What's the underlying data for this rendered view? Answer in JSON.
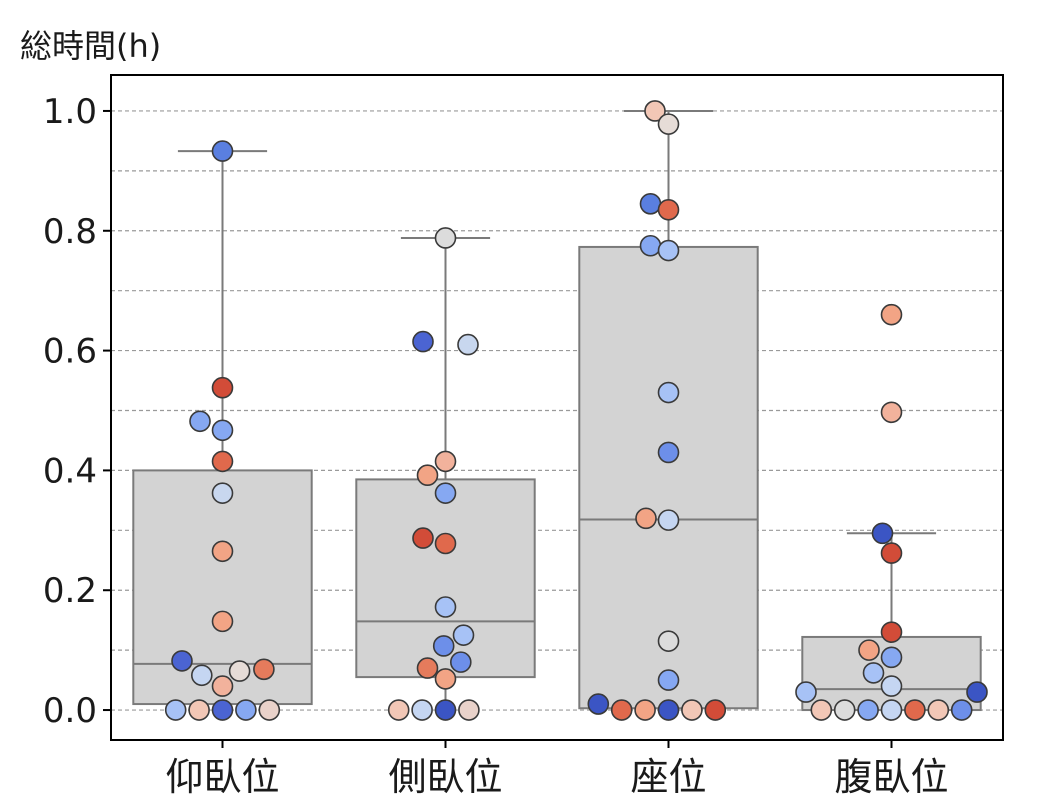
{
  "chart_data": {
    "type": "box-swarm",
    "title": "",
    "ylabel": "総時間(h)",
    "xlabel": "",
    "ylim": [
      -0.05,
      1.06
    ],
    "yticks": [
      "0.0",
      "0.2",
      "0.4",
      "0.6",
      "0.8",
      "1.0"
    ],
    "ytick_values": [
      0.0,
      0.2,
      0.4,
      0.6,
      0.8,
      1.0
    ],
    "grid": "horizontal dashed",
    "box_color": "#d3d3d3",
    "box_edge_color": "#7a7a7a",
    "categories": [
      "仰臥位",
      "側臥位",
      "座位",
      "腹臥位"
    ],
    "boxes": [
      {
        "name": "仰臥位",
        "q1": 0.01,
        "median": 0.077,
        "q3": 0.4,
        "whisker_low": 0.0,
        "whisker_high": 0.933
      },
      {
        "name": "側臥位",
        "q1": 0.055,
        "median": 0.148,
        "q3": 0.385,
        "whisker_low": 0.0,
        "whisker_high": 0.788
      },
      {
        "name": "座位",
        "q1": 0.003,
        "median": 0.318,
        "q3": 0.773,
        "whisker_low": 0.0,
        "whisker_high": 1.0
      },
      {
        "name": "腹臥位",
        "q1": 0.0,
        "median": 0.035,
        "q3": 0.122,
        "whisker_low": 0.0,
        "whisker_high": 0.295
      }
    ],
    "points": [
      [
        {
          "y": 0.933,
          "offset": 0.0,
          "color": "#5a7fe0"
        },
        {
          "y": 0.538,
          "offset": 0.0,
          "color": "#d24c38"
        },
        {
          "y": 0.482,
          "offset": -0.25,
          "color": "#86a8f2"
        },
        {
          "y": 0.467,
          "offset": 0.0,
          "color": "#86a8f2"
        },
        {
          "y": 0.415,
          "offset": 0.0,
          "color": "#e0694c"
        },
        {
          "y": 0.362,
          "offset": 0.0,
          "color": "#c8d7ef"
        },
        {
          "y": 0.265,
          "offset": 0.0,
          "color": "#f2a485"
        },
        {
          "y": 0.148,
          "offset": 0.0,
          "color": "#f2a485"
        },
        {
          "y": 0.082,
          "offset": -0.45,
          "color": "#4b64d2"
        },
        {
          "y": 0.065,
          "offset": 0.19,
          "color": "#e6dcd7"
        },
        {
          "y": 0.068,
          "offset": 0.46,
          "color": "#e57b5c"
        },
        {
          "y": 0.058,
          "offset": -0.23,
          "color": "#c5d6f2"
        },
        {
          "y": 0.04,
          "offset": 0.0,
          "color": "#f2b29c"
        },
        {
          "y": 0.0,
          "offset": -0.52,
          "color": "#a7c2f6"
        },
        {
          "y": 0.0,
          "offset": -0.26,
          "color": "#f2c7b6"
        },
        {
          "y": 0.0,
          "offset": 0.0,
          "color": "#4b64d2"
        },
        {
          "y": 0.0,
          "offset": 0.26,
          "color": "#86a8f2"
        },
        {
          "y": 0.0,
          "offset": 0.52,
          "color": "#e9d2ca"
        }
      ],
      [
        {
          "y": 0.788,
          "offset": 0.0,
          "color": "#dcdcdc"
        },
        {
          "y": 0.615,
          "offset": -0.25,
          "color": "#4b64d2"
        },
        {
          "y": 0.61,
          "offset": 0.25,
          "color": "#c8d7ef"
        },
        {
          "y": 0.415,
          "offset": 0.0,
          "color": "#f2b29c"
        },
        {
          "y": 0.392,
          "offset": -0.2,
          "color": "#f2a485"
        },
        {
          "y": 0.362,
          "offset": 0.0,
          "color": "#86a8f2"
        },
        {
          "y": 0.287,
          "offset": -0.25,
          "color": "#d24c38"
        },
        {
          "y": 0.278,
          "offset": 0.0,
          "color": "#e0694c"
        },
        {
          "y": 0.172,
          "offset": 0.0,
          "color": "#a7c2f6"
        },
        {
          "y": 0.125,
          "offset": 0.2,
          "color": "#a7c2f6"
        },
        {
          "y": 0.107,
          "offset": -0.02,
          "color": "#6d8fe9"
        },
        {
          "y": 0.08,
          "offset": 0.17,
          "color": "#6d8fe9"
        },
        {
          "y": 0.07,
          "offset": -0.2,
          "color": "#e57b5c"
        },
        {
          "y": 0.052,
          "offset": 0.0,
          "color": "#f2a485"
        },
        {
          "y": 0.0,
          "offset": -0.52,
          "color": "#f2c7b6"
        },
        {
          "y": 0.0,
          "offset": -0.26,
          "color": "#c5d6f2"
        },
        {
          "y": 0.0,
          "offset": 0.0,
          "color": "#3b55c4"
        },
        {
          "y": 0.0,
          "offset": 0.26,
          "color": "#e9d2ca"
        }
      ],
      [
        {
          "y": 1.0,
          "offset": -0.15,
          "color": "#f2c7b6"
        },
        {
          "y": 0.978,
          "offset": 0.0,
          "color": "#e6dcd7"
        },
        {
          "y": 0.845,
          "offset": -0.2,
          "color": "#5a7fe0"
        },
        {
          "y": 0.835,
          "offset": 0.0,
          "color": "#e0694c"
        },
        {
          "y": 0.775,
          "offset": -0.2,
          "color": "#86a8f2"
        },
        {
          "y": 0.767,
          "offset": 0.0,
          "color": "#a7c2f6"
        },
        {
          "y": 0.53,
          "offset": 0.0,
          "color": "#a7c2f6"
        },
        {
          "y": 0.43,
          "offset": 0.0,
          "color": "#6d8fe9"
        },
        {
          "y": 0.32,
          "offset": -0.25,
          "color": "#f2a485"
        },
        {
          "y": 0.317,
          "offset": 0.0,
          "color": "#c5d6f2"
        },
        {
          "y": 0.115,
          "offset": 0.0,
          "color": "#dcdcdc"
        },
        {
          "y": 0.05,
          "offset": 0.0,
          "color": "#86a8f2"
        },
        {
          "y": 0.01,
          "offset": -0.78,
          "color": "#3b55c4"
        },
        {
          "y": 0.0,
          "offset": -0.52,
          "color": "#e0694c"
        },
        {
          "y": 0.0,
          "offset": -0.26,
          "color": "#f2a485"
        },
        {
          "y": 0.0,
          "offset": 0.0,
          "color": "#3b55c4"
        },
        {
          "y": 0.0,
          "offset": 0.26,
          "color": "#f2c7b6"
        },
        {
          "y": 0.0,
          "offset": 0.52,
          "color": "#d24c38"
        }
      ],
      [
        {
          "y": 0.66,
          "offset": 0.0,
          "color": "#f2a485"
        },
        {
          "y": 0.497,
          "offset": 0.0,
          "color": "#f2b29c"
        },
        {
          "y": 0.295,
          "offset": -0.1,
          "color": "#3b55c4"
        },
        {
          "y": 0.262,
          "offset": 0.0,
          "color": "#d24c38"
        },
        {
          "y": 0.13,
          "offset": 0.0,
          "color": "#d24c38"
        },
        {
          "y": 0.1,
          "offset": -0.25,
          "color": "#f2a485"
        },
        {
          "y": 0.088,
          "offset": 0.0,
          "color": "#86a8f2"
        },
        {
          "y": 0.062,
          "offset": -0.2,
          "color": "#a7c2f6"
        },
        {
          "y": 0.04,
          "offset": 0.0,
          "color": "#c5d6f2"
        },
        {
          "y": 0.03,
          "offset": -0.95,
          "color": "#a7c2f6"
        },
        {
          "y": 0.03,
          "offset": 0.95,
          "color": "#3b55c4"
        },
        {
          "y": 0.0,
          "offset": -0.78,
          "color": "#f2c7b6"
        },
        {
          "y": 0.0,
          "offset": -0.52,
          "color": "#dcdcdc"
        },
        {
          "y": 0.0,
          "offset": -0.26,
          "color": "#86a8f2"
        },
        {
          "y": 0.0,
          "offset": 0.0,
          "color": "#c5d6f2"
        },
        {
          "y": 0.0,
          "offset": 0.26,
          "color": "#e0694c"
        },
        {
          "y": 0.0,
          "offset": 0.52,
          "color": "#f2c7b6"
        },
        {
          "y": 0.0,
          "offset": 0.78,
          "color": "#6d8fe9"
        }
      ]
    ]
  }
}
